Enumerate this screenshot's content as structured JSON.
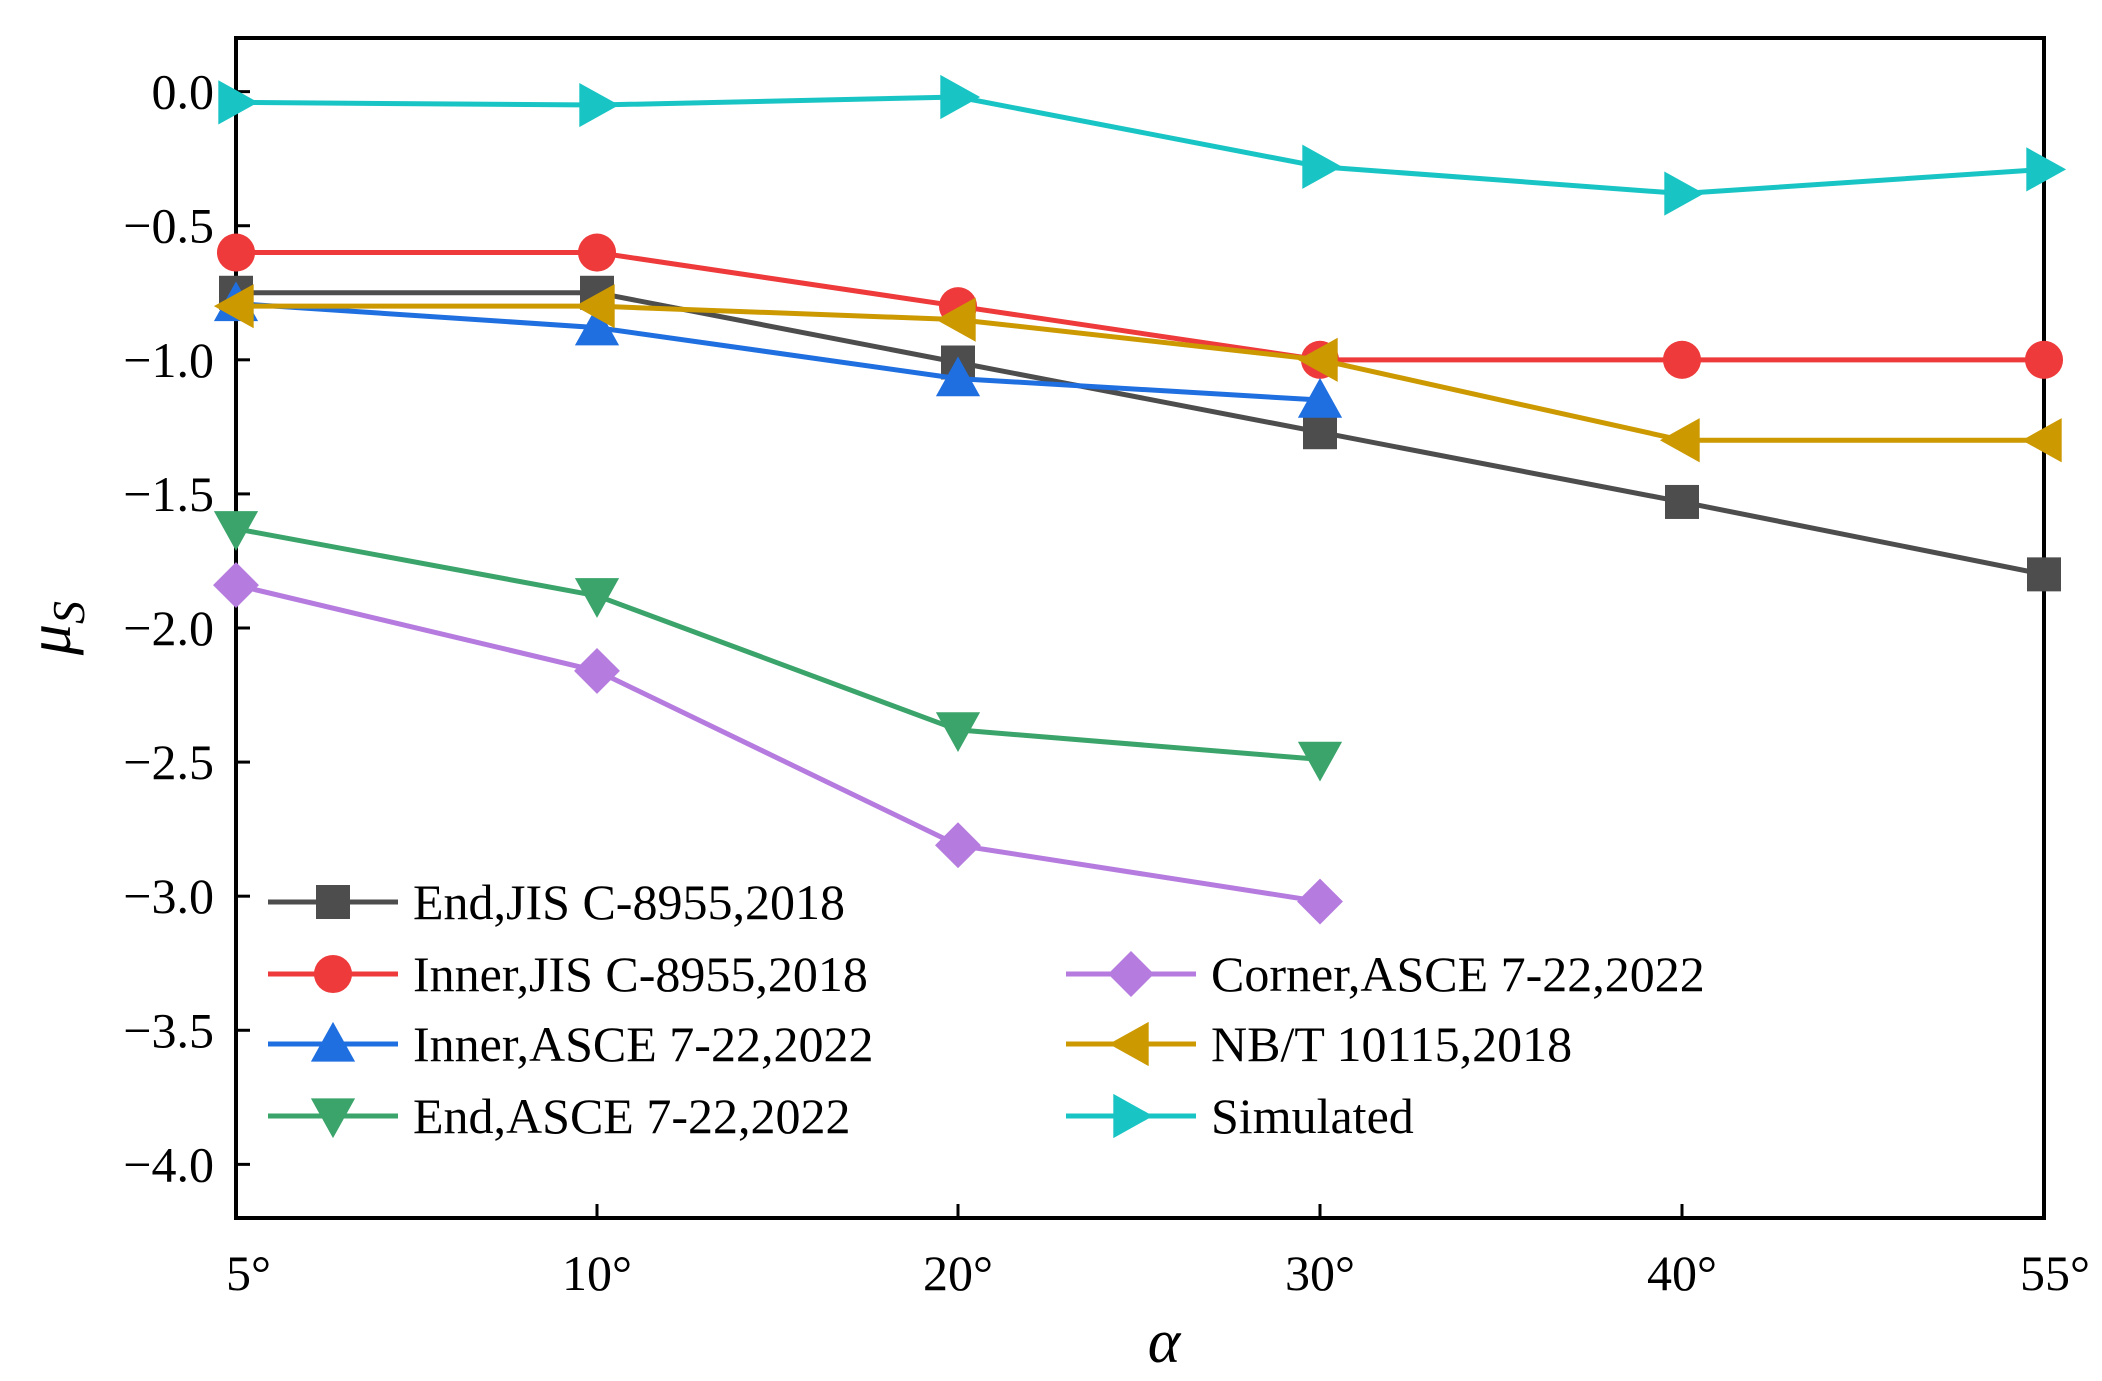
{
  "chart_data": {
    "type": "line",
    "title": "",
    "xlabel": "α",
    "ylabel": "μS",
    "ylabel_main": "μ",
    "ylabel_sub": "S",
    "categories": [
      "5°",
      "10°",
      "20°",
      "30°",
      "40°",
      "55°"
    ],
    "ylim": [
      -4.2,
      0.2
    ],
    "yticks": [
      0.0,
      -0.5,
      -1.0,
      -1.5,
      -2.0,
      -2.5,
      -3.0,
      -3.5,
      -4.0
    ],
    "ytick_labels": [
      "0.0",
      "−0.5",
      "−1.0",
      "−1.5",
      "−2.0",
      "−2.5",
      "−3.0",
      "−3.5",
      "−4.0"
    ],
    "grid": false,
    "legend_position": "bottom-left",
    "series": [
      {
        "name": "End,JIS C-8955,2018",
        "color": "#4d4d4d",
        "marker": "square",
        "values": [
          -0.75,
          -0.75,
          -1.01,
          -1.27,
          -1.53,
          -1.8
        ]
      },
      {
        "name": "Inner,JIS C-8955,2018",
        "color": "#ee3a3a",
        "marker": "circle",
        "values": [
          -0.6,
          -0.6,
          -0.8,
          -1.0,
          -1.0,
          -1.0
        ]
      },
      {
        "name": "Inner,ASCE 7-22,2022",
        "color": "#1f6fe0",
        "marker": "triangle-up",
        "values": [
          -0.79,
          -0.88,
          -1.07,
          -1.15,
          null,
          null
        ]
      },
      {
        "name": "End,ASCE 7-22,2022",
        "color": "#3aa46a",
        "marker": "triangle-down",
        "values": [
          -1.63,
          -1.88,
          -2.38,
          -2.49,
          null,
          null
        ]
      },
      {
        "name": "Corner,ASCE 7-22,2022",
        "color": "#b57bde",
        "marker": "diamond",
        "values": [
          -1.84,
          -2.16,
          -2.81,
          -3.02,
          null,
          null
        ]
      },
      {
        "name": "NB/T 10115,2018",
        "color": "#cc9900",
        "marker": "triangle-left",
        "values": [
          -0.8,
          -0.8,
          -0.85,
          -1.0,
          -1.3,
          -1.3
        ]
      },
      {
        "name": "Simulated",
        "color": "#19c4c4",
        "marker": "triangle-right",
        "values": [
          -0.04,
          -0.05,
          -0.02,
          -0.28,
          -0.38,
          -0.29
        ]
      }
    ]
  }
}
